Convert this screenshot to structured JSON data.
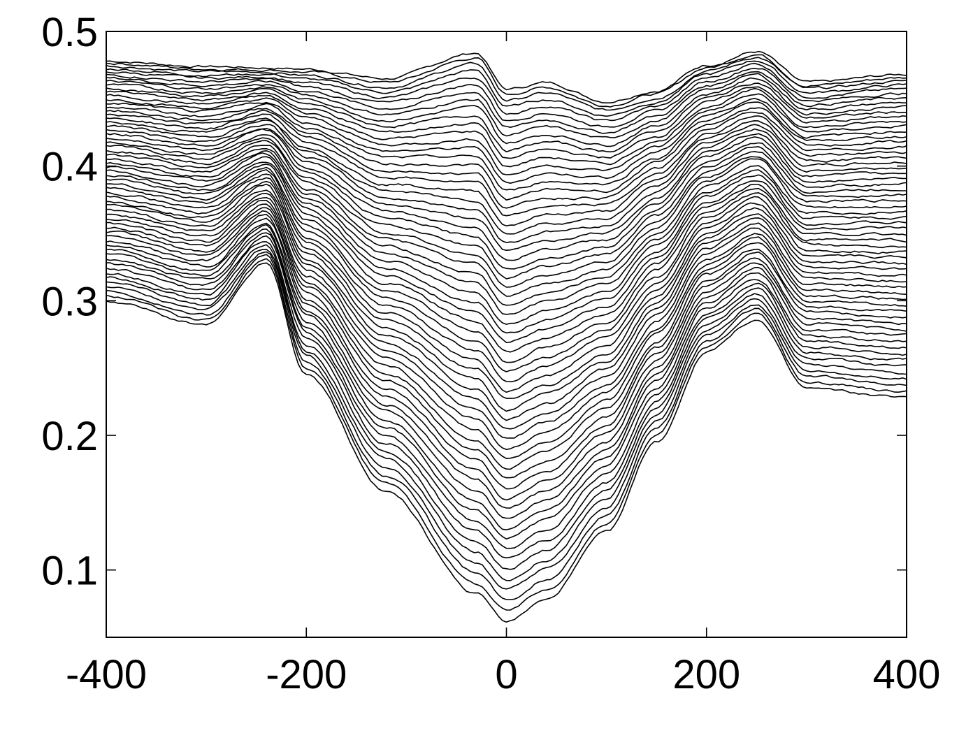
{
  "chart_data": {
    "type": "line",
    "title": "",
    "xlabel": "",
    "ylabel": "",
    "xlim": [
      -400,
      400
    ],
    "ylim": [
      0.05,
      0.5
    ],
    "grid": false,
    "x_ticks": [
      -400,
      -200,
      0,
      200,
      400
    ],
    "x_tick_labels": [
      "-400",
      "-200",
      "0",
      "200",
      "400"
    ],
    "y_ticks": [
      0.1,
      0.2,
      0.3,
      0.4,
      0.5
    ],
    "y_tick_labels": [
      "0.1",
      "0.2",
      "0.3",
      "0.4",
      "0.5"
    ],
    "series_count": 60,
    "x": [
      -400,
      -300,
      -240,
      -200,
      -120,
      -30,
      0,
      40,
      100,
      150,
      200,
      250,
      300,
      400
    ],
    "top_series_y": [
      0.478,
      0.474,
      0.473,
      0.472,
      0.465,
      0.484,
      0.457,
      0.462,
      0.448,
      0.456,
      0.475,
      0.485,
      0.462,
      0.468
    ],
    "bottom_series_y": [
      0.3,
      0.282,
      0.328,
      0.245,
      0.158,
      0.082,
      0.062,
      0.078,
      0.128,
      0.195,
      0.262,
      0.286,
      0.235,
      0.228
    ]
  }
}
